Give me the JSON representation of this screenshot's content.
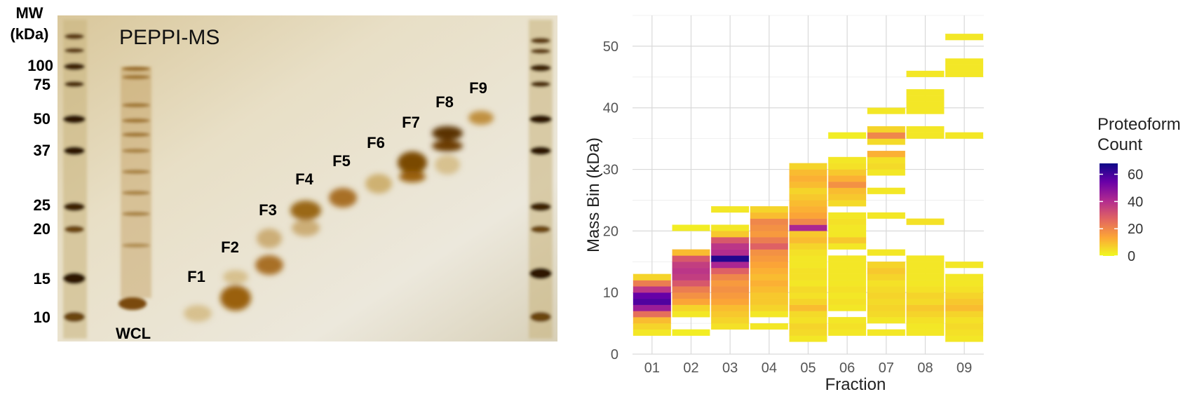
{
  "gel": {
    "mw_header_line1": "MW",
    "mw_header_line2": "(kDa)",
    "gel_title": "PEPPI-MS",
    "mw_markers": [
      "100",
      "75",
      "50",
      "37",
      "25",
      "20",
      "15",
      "10"
    ],
    "lane_labels": [
      "WCL",
      "F1",
      "F2",
      "F3",
      "F4",
      "F5",
      "F6",
      "F7",
      "F8",
      "F9"
    ],
    "colors": {
      "gel_background": "#e8dfc6",
      "band": "#8a5a10",
      "ladder": "#4a2a05"
    }
  },
  "chart_data": {
    "type": "heatmap",
    "title": "",
    "xlabel": "Fraction",
    "ylabel": "Mass Bin (kDa)",
    "categories": [
      "01",
      "02",
      "03",
      "04",
      "05",
      "06",
      "07",
      "08",
      "09"
    ],
    "y_ticks": [
      "0",
      "10",
      "20",
      "30",
      "40",
      "50"
    ],
    "ylim": [
      0,
      55
    ],
    "bin_width_kda": 1,
    "legend": {
      "title_line1": "Proteoform",
      "title_line2": "Count",
      "ticks": [
        "0",
        "20",
        "40",
        "60"
      ],
      "range": [
        0,
        68
      ],
      "placement": "right",
      "colors": [
        "#f0f921",
        "#fca636",
        "#e16462",
        "#b12a90",
        "#6a00a8",
        "#0d0887"
      ]
    },
    "grid": true,
    "cells": [
      {
        "fraction": "01",
        "bins": [
          [
            3,
            3
          ],
          [
            4,
            6
          ],
          [
            5,
            10
          ],
          [
            6,
            25
          ],
          [
            7,
            45
          ],
          [
            8,
            58
          ],
          [
            9,
            55
          ],
          [
            10,
            38
          ],
          [
            11,
            22
          ],
          [
            12,
            6
          ]
        ]
      },
      {
        "fraction": "02",
        "bins": [
          [
            3,
            2
          ],
          [
            6,
            3
          ],
          [
            7,
            6
          ],
          [
            8,
            14
          ],
          [
            9,
            18
          ],
          [
            10,
            22
          ],
          [
            11,
            30
          ],
          [
            12,
            36
          ],
          [
            13,
            38
          ],
          [
            14,
            36
          ],
          [
            15,
            30
          ],
          [
            16,
            10
          ],
          [
            20,
            2
          ]
        ]
      },
      {
        "fraction": "03",
        "bins": [
          [
            4,
            4
          ],
          [
            5,
            6
          ],
          [
            6,
            8
          ],
          [
            7,
            10
          ],
          [
            8,
            14
          ],
          [
            9,
            16
          ],
          [
            10,
            18
          ],
          [
            11,
            16
          ],
          [
            12,
            20
          ],
          [
            13,
            28
          ],
          [
            14,
            42
          ],
          [
            15,
            65
          ],
          [
            16,
            40
          ],
          [
            17,
            38
          ],
          [
            18,
            30
          ],
          [
            19,
            8
          ],
          [
            20,
            3
          ],
          [
            23,
            3
          ]
        ]
      },
      {
        "fraction": "04",
        "bins": [
          [
            4,
            3
          ],
          [
            6,
            3
          ],
          [
            7,
            6
          ],
          [
            8,
            8
          ],
          [
            9,
            8
          ],
          [
            10,
            10
          ],
          [
            11,
            12
          ],
          [
            12,
            10
          ],
          [
            13,
            12
          ],
          [
            14,
            14
          ],
          [
            15,
            16
          ],
          [
            16,
            18
          ],
          [
            17,
            28
          ],
          [
            18,
            22
          ],
          [
            19,
            16
          ],
          [
            20,
            18
          ],
          [
            21,
            20
          ],
          [
            22,
            10
          ],
          [
            23,
            6
          ]
        ]
      },
      {
        "fraction": "05",
        "bins": [
          [
            2,
            3
          ],
          [
            3,
            5
          ],
          [
            4,
            6
          ],
          [
            5,
            4
          ],
          [
            6,
            5
          ],
          [
            7,
            10
          ],
          [
            8,
            6
          ],
          [
            9,
            4
          ],
          [
            10,
            5
          ],
          [
            11,
            3
          ],
          [
            12,
            4
          ],
          [
            13,
            4
          ],
          [
            14,
            3
          ],
          [
            15,
            3
          ],
          [
            16,
            4
          ],
          [
            17,
            6
          ],
          [
            18,
            10
          ],
          [
            19,
            8
          ],
          [
            20,
            42
          ],
          [
            21,
            20
          ],
          [
            22,
            14
          ],
          [
            23,
            12
          ],
          [
            24,
            10
          ],
          [
            25,
            8
          ],
          [
            26,
            6
          ],
          [
            27,
            10
          ],
          [
            28,
            12
          ],
          [
            29,
            10
          ],
          [
            30,
            6
          ]
        ]
      },
      {
        "fraction": "06",
        "bins": [
          [
            3,
            3
          ],
          [
            4,
            4
          ],
          [
            5,
            3
          ],
          [
            7,
            3
          ],
          [
            8,
            4
          ],
          [
            9,
            3
          ],
          [
            10,
            4
          ],
          [
            11,
            3
          ],
          [
            12,
            3
          ],
          [
            13,
            3
          ],
          [
            14,
            3
          ],
          [
            15,
            3
          ],
          [
            17,
            3
          ],
          [
            18,
            8
          ],
          [
            19,
            3
          ],
          [
            20,
            3
          ],
          [
            21,
            4
          ],
          [
            22,
            3
          ],
          [
            24,
            5
          ],
          [
            25,
            8
          ],
          [
            26,
            10
          ],
          [
            27,
            18
          ],
          [
            28,
            12
          ],
          [
            29,
            8
          ],
          [
            30,
            4
          ],
          [
            31,
            3
          ],
          [
            35,
            2
          ]
        ]
      },
      {
        "fraction": "07",
        "bins": [
          [
            3,
            3
          ],
          [
            5,
            3
          ],
          [
            6,
            5
          ],
          [
            7,
            6
          ],
          [
            8,
            5
          ],
          [
            9,
            6
          ],
          [
            10,
            5
          ],
          [
            11,
            4
          ],
          [
            12,
            6
          ],
          [
            13,
            8
          ],
          [
            14,
            6
          ],
          [
            16,
            3
          ],
          [
            22,
            3
          ],
          [
            26,
            3
          ],
          [
            29,
            3
          ],
          [
            30,
            5
          ],
          [
            31,
            4
          ],
          [
            32,
            12
          ],
          [
            34,
            5
          ],
          [
            35,
            20
          ],
          [
            36,
            6
          ],
          [
            39,
            3
          ]
        ]
      },
      {
        "fraction": "08",
        "bins": [
          [
            3,
            3
          ],
          [
            4,
            3
          ],
          [
            5,
            4
          ],
          [
            6,
            6
          ],
          [
            7,
            8
          ],
          [
            8,
            5
          ],
          [
            9,
            6
          ],
          [
            10,
            4
          ],
          [
            11,
            3
          ],
          [
            12,
            3
          ],
          [
            13,
            3
          ],
          [
            14,
            3
          ],
          [
            15,
            3
          ],
          [
            21,
            4
          ],
          [
            35,
            3
          ],
          [
            36,
            3
          ],
          [
            39,
            3
          ],
          [
            40,
            3
          ],
          [
            41,
            3
          ],
          [
            42,
            3
          ],
          [
            45,
            3
          ]
        ]
      },
      {
        "fraction": "09",
        "bins": [
          [
            2,
            3
          ],
          [
            3,
            4
          ],
          [
            4,
            5
          ],
          [
            5,
            4
          ],
          [
            6,
            6
          ],
          [
            7,
            10
          ],
          [
            8,
            8
          ],
          [
            9,
            6
          ],
          [
            10,
            4
          ],
          [
            11,
            3
          ],
          [
            12,
            3
          ],
          [
            14,
            3
          ],
          [
            35,
            3
          ],
          [
            45,
            3
          ],
          [
            46,
            3
          ],
          [
            47,
            3
          ],
          [
            51,
            3
          ]
        ]
      }
    ]
  }
}
